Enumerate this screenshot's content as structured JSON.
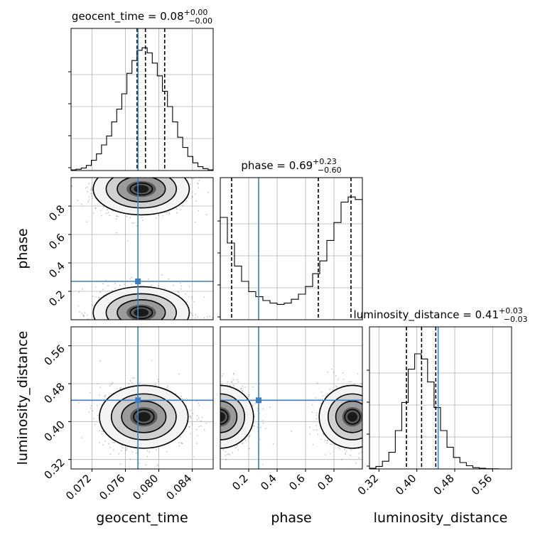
{
  "chart_data": {
    "type": "corner",
    "parameters": [
      "geocent_time",
      "phase",
      "luminosity_distance"
    ],
    "titles": {
      "geocent_time": {
        "name": "geocent_time",
        "median": "0.08",
        "plus": "+0.00",
        "minus": "−0.00"
      },
      "phase": {
        "name": "phase",
        "median": "0.69",
        "plus": "+0.23",
        "minus": "−0.60"
      },
      "luminosity_distance": {
        "name": "luminosity_distance",
        "median": "0.41",
        "plus": "+0.03",
        "minus": "−0.03"
      }
    },
    "axis_labels": {
      "x": [
        "geocent_time",
        "phase",
        "luminosity_distance"
      ],
      "y": [
        "phase",
        "luminosity_distance"
      ]
    },
    "ranges": {
      "geocent_time": [
        0.0695,
        0.0865
      ],
      "phase": [
        0.0,
        1.0
      ],
      "luminosity_distance": [
        0.3,
        0.6
      ]
    },
    "ticks": {
      "geocent_time": [
        "0.072",
        "0.076",
        "0.080",
        "0.084"
      ],
      "phase": [
        "0.2",
        "0.4",
        "0.6",
        "0.8"
      ],
      "luminosity_distance": [
        "0.32",
        "0.40",
        "0.48",
        "0.56"
      ]
    },
    "truth": {
      "geocent_time": 0.0775,
      "phase": 0.27,
      "luminosity_distance": 0.445
    },
    "quantiles": {
      "geocent_time": [
        0.0774,
        0.0784,
        0.0807
      ],
      "phase": [
        0.08,
        0.69,
        0.92
      ],
      "luminosity_distance": [
        0.378,
        0.41,
        0.44
      ]
    },
    "histograms": {
      "geocent_time": [
        0.005,
        0.01,
        0.02,
        0.04,
        0.08,
        0.13,
        0.2,
        0.27,
        0.38,
        0.48,
        0.6,
        0.76,
        0.86,
        0.94,
        0.96,
        0.92,
        0.84,
        0.74,
        0.62,
        0.5,
        0.38,
        0.26,
        0.18,
        0.11,
        0.06,
        0.03,
        0.015,
        0.005
      ],
      "phase": [
        0.8,
        0.6,
        0.42,
        0.3,
        0.22,
        0.18,
        0.15,
        0.13,
        0.12,
        0.13,
        0.16,
        0.2,
        0.26,
        0.36,
        0.46,
        0.62,
        0.76,
        0.92,
        0.96,
        0.94
      ],
      "luminosity_distance": [
        0.005,
        0.02,
        0.06,
        0.13,
        0.3,
        0.52,
        0.78,
        0.9,
        0.86,
        0.68,
        0.48,
        0.3,
        0.17,
        0.09,
        0.05,
        0.025,
        0.01,
        0.005,
        0.002,
        0.001,
        0.0,
        0.0
      ]
    },
    "density_peaks": {
      "phase_vs_geocent_time": [
        {
          "x": 0.0779,
          "y": 0.92
        },
        {
          "x": 0.0779,
          "y": 0.05
        }
      ],
      "luminosity_distance_vs_geocent_time": [
        {
          "x": 0.0782,
          "y": 0.41
        }
      ],
      "luminosity_distance_vs_phase": [
        {
          "x": 0.0,
          "y": 0.41
        },
        {
          "x": 0.93,
          "y": 0.41
        }
      ]
    },
    "colors": {
      "truth": "#3f7fbf",
      "hist": "#000000",
      "quantile": "#000000",
      "grid": "#b0b0b0"
    },
    "grid": true
  }
}
